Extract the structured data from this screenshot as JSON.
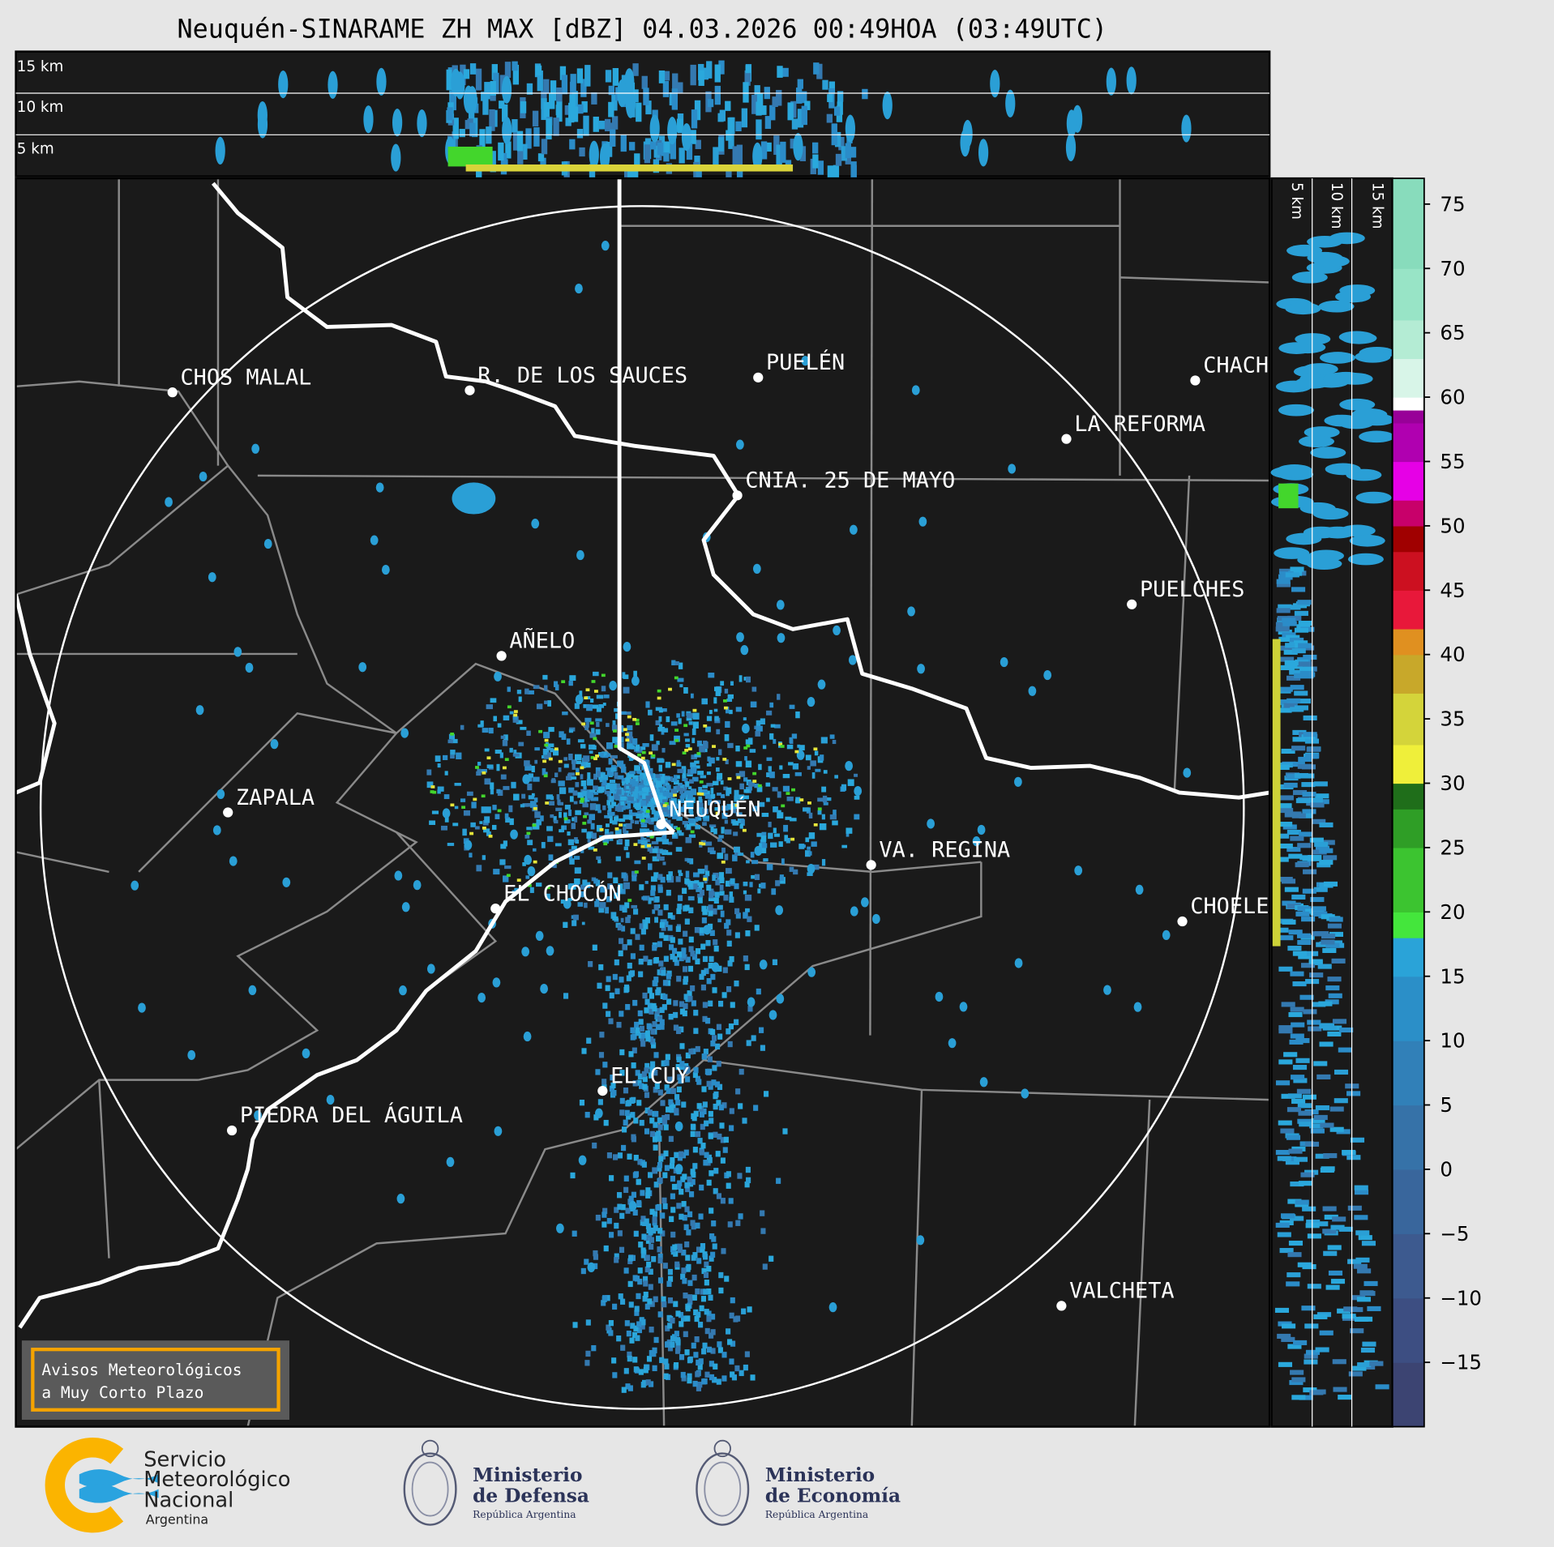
{
  "title": "Neuquén-SINARAME ZH MAX [dBZ] 04.03.2026 00:49HOA (03:49UTC)",
  "height_labels": [
    "15 km",
    "10 km",
    "5 km"
  ],
  "side_height_labels": [
    "5 km",
    "10 km",
    "15 km"
  ],
  "cities": [
    "CHOS MALAL",
    "R. DE LOS SAUCES",
    "PUELÉN",
    "CHACH",
    "LA REFORMA",
    "CNIA. 25 DE MAYO",
    "PUELCHES",
    "AÑELO",
    "ZAPALA",
    "NEUQUÉN",
    "VA. REGINA",
    "EL CHOCÓN",
    "CHOELE",
    "EL CUY",
    "PIEDRA DEL ÁGUILA",
    "VALCHETA"
  ],
  "colorbar": {
    "unit": "dBZ",
    "range": [
      -20,
      77
    ],
    "ticks": [
      "75",
      "70",
      "65",
      "60",
      "55",
      "50",
      "45",
      "40",
      "35",
      "30",
      "25",
      "20",
      "15",
      "10",
      "5",
      "0",
      "−5",
      "−10",
      "−15"
    ]
  },
  "warning_box": {
    "line1": "Avisos Meteorológicos",
    "line2": "a Muy Corto Plazo",
    "border_color": "#f5a300"
  },
  "logos": {
    "smn": [
      "Servicio",
      "Meteorológico",
      "Nacional",
      "Argentina"
    ],
    "defensa": [
      "Ministerio",
      "de Defensa",
      "República Argentina"
    ],
    "economia": [
      "Ministerio",
      "de Economía",
      "República Argentina"
    ]
  },
  "colors": {
    "background": "#1a1a1a",
    "echo": "#2a9fd6",
    "river": "#ffffff",
    "border": "#8a8a8a",
    "smn_orange": "#fbb400",
    "smn_blue": "#2aa3df",
    "ministry_navy": "#2b3358"
  }
}
